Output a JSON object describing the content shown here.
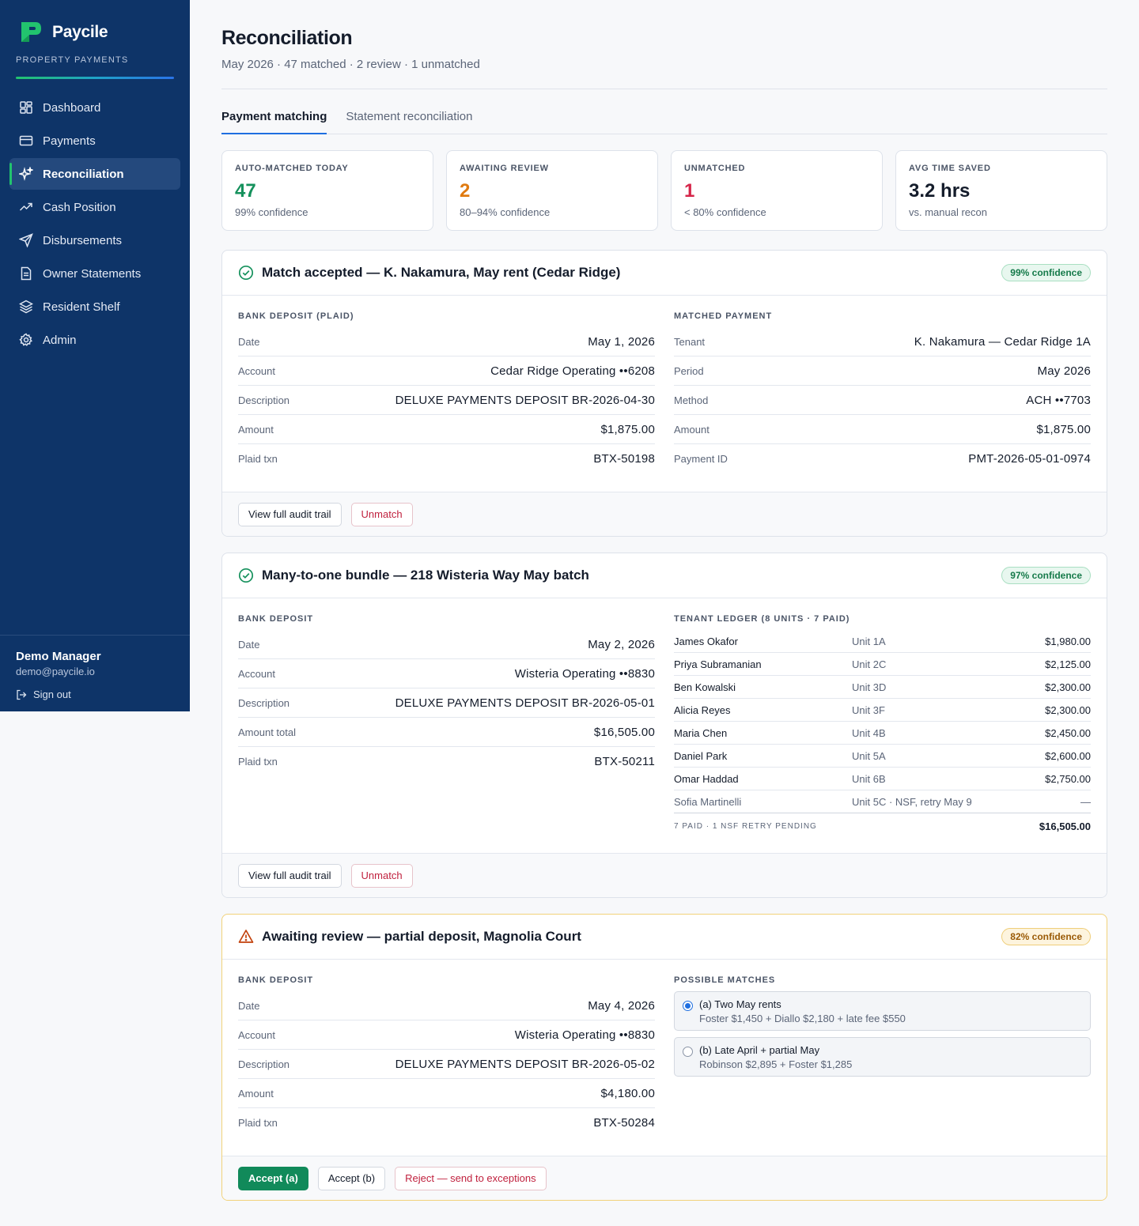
{
  "brand": {
    "name": "Paycile",
    "subtitle": "PROPERTY PAYMENTS"
  },
  "nav": [
    {
      "label": "Dashboard",
      "icon": "grid-icon"
    },
    {
      "label": "Payments",
      "icon": "card-icon"
    },
    {
      "label": "Reconciliation",
      "icon": "sparkle-icon",
      "active": true
    },
    {
      "label": "Cash Position",
      "icon": "trend-icon"
    },
    {
      "label": "Disbursements",
      "icon": "send-icon"
    },
    {
      "label": "Owner Statements",
      "icon": "document-icon"
    },
    {
      "label": "Resident Shelf",
      "icon": "layers-icon"
    },
    {
      "label": "Admin",
      "icon": "gear-icon"
    }
  ],
  "user": {
    "name": "Demo Manager",
    "email": "demo@paycile.io",
    "signout": "Sign out"
  },
  "page": {
    "title": "Reconciliation",
    "subtitle": "May 2026 · 47 matched · 2 review · 1 unmatched"
  },
  "tabs": [
    {
      "label": "Payment matching",
      "active": true
    },
    {
      "label": "Statement reconciliation"
    }
  ],
  "stats": [
    {
      "label": "AUTO-MATCHED TODAY",
      "value": "47",
      "note": "99% confidence",
      "color": "#15915c"
    },
    {
      "label": "AWAITING REVIEW",
      "value": "2",
      "note": "80–94% confidence",
      "color": "#e07a10"
    },
    {
      "label": "UNMATCHED",
      "value": "1",
      "note": "< 80% confidence",
      "color": "#d6264a"
    },
    {
      "label": "AVG TIME SAVED",
      "value": "3.2 hrs",
      "note": "vs. manual recon",
      "color": "#141c2b"
    }
  ],
  "cards": [
    {
      "title": "Match accepted — K. Nakamura, May rent (Cedar Ridge)",
      "badge": "99% confidence",
      "left": {
        "label": "BANK DEPOSIT (PLAID)",
        "rows": [
          {
            "k": "Date",
            "v": "May 1, 2026"
          },
          {
            "k": "Account",
            "v": "Cedar Ridge Operating ••6208"
          },
          {
            "k": "Description",
            "v": "DELUXE PAYMENTS DEPOSIT BR-2026-04-30"
          },
          {
            "k": "Amount",
            "v": "$1,875.00"
          },
          {
            "k": "Plaid txn",
            "v": "BTX-50198"
          }
        ]
      },
      "right": {
        "label": "MATCHED PAYMENT",
        "rows": [
          {
            "k": "Tenant",
            "v": "K. Nakamura — Cedar Ridge 1A"
          },
          {
            "k": "Period",
            "v": "May 2026"
          },
          {
            "k": "Method",
            "v": "ACH ••7703"
          },
          {
            "k": "Amount",
            "v": "$1,875.00"
          },
          {
            "k": "Payment ID",
            "v": "PMT-2026-05-01-0974"
          }
        ]
      },
      "buttons": [
        "View full audit trail",
        "Unmatch"
      ]
    },
    {
      "title": "Many-to-one bundle — 218 Wisteria Way May batch",
      "badge": "97% confidence",
      "left": {
        "label": "BANK DEPOSIT",
        "rows": [
          {
            "k": "Date",
            "v": "May 2, 2026"
          },
          {
            "k": "Account",
            "v": "Wisteria Operating ••8830"
          },
          {
            "k": "Description",
            "v": "DELUXE PAYMENTS DEPOSIT BR-2026-05-01"
          },
          {
            "k": "Amount total",
            "v": "$16,505.00"
          },
          {
            "k": "Plaid txn",
            "v": "BTX-50211"
          }
        ]
      },
      "right": {
        "label": "TENANT LEDGER (8 UNITS · 7 PAID)",
        "ledger": [
          {
            "name": "James Okafor",
            "unit": "Unit 1A",
            "amount": "$1,980.00"
          },
          {
            "name": "Priya Subramanian",
            "unit": "Unit 2C",
            "amount": "$2,125.00"
          },
          {
            "name": "Ben Kowalski",
            "unit": "Unit 3D",
            "amount": "$2,300.00"
          },
          {
            "name": "Alicia Reyes",
            "unit": "Unit 3F",
            "amount": "$2,300.00"
          },
          {
            "name": "Maria Chen",
            "unit": "Unit 4B",
            "amount": "$2,450.00"
          },
          {
            "name": "Daniel Park",
            "unit": "Unit 5A",
            "amount": "$2,600.00"
          },
          {
            "name": "Omar Haddad",
            "unit": "Unit 6B",
            "amount": "$2,750.00"
          },
          {
            "name": "Sofia Martinelli",
            "unit": "Unit 5C · NSF, retry May 9",
            "amount": "—"
          }
        ],
        "total_label": "7 PAID · 1 NSF RETRY PENDING",
        "total": "$16,505.00"
      },
      "buttons": [
        "View full audit trail",
        "Unmatch"
      ]
    },
    {
      "title": "Awaiting review — partial deposit, Magnolia Court",
      "badge": "82% confidence",
      "left": {
        "label": "BANK DEPOSIT",
        "rows": [
          {
            "k": "Date",
            "v": "May 4, 2026"
          },
          {
            "k": "Account",
            "v": "Wisteria Operating ••8830"
          },
          {
            "k": "Description",
            "v": "DELUXE PAYMENTS DEPOSIT BR-2026-05-02"
          },
          {
            "k": "Amount",
            "v": "$4,180.00"
          },
          {
            "k": "Plaid txn",
            "v": "BTX-50284"
          }
        ]
      },
      "right": {
        "label": "POSSIBLE MATCHES",
        "options": [
          {
            "title": "(a) Two May rents",
            "desc": "Foster $1,450 + Diallo $2,180 + late fee $550",
            "selected": true
          },
          {
            "title": "(b) Late April + partial May",
            "desc": "Robinson $2,895 + Foster $1,285",
            "selected": false
          }
        ]
      },
      "buttons": [
        "Accept (a)",
        "Accept (b)",
        "Reject — send to exceptions"
      ]
    }
  ]
}
